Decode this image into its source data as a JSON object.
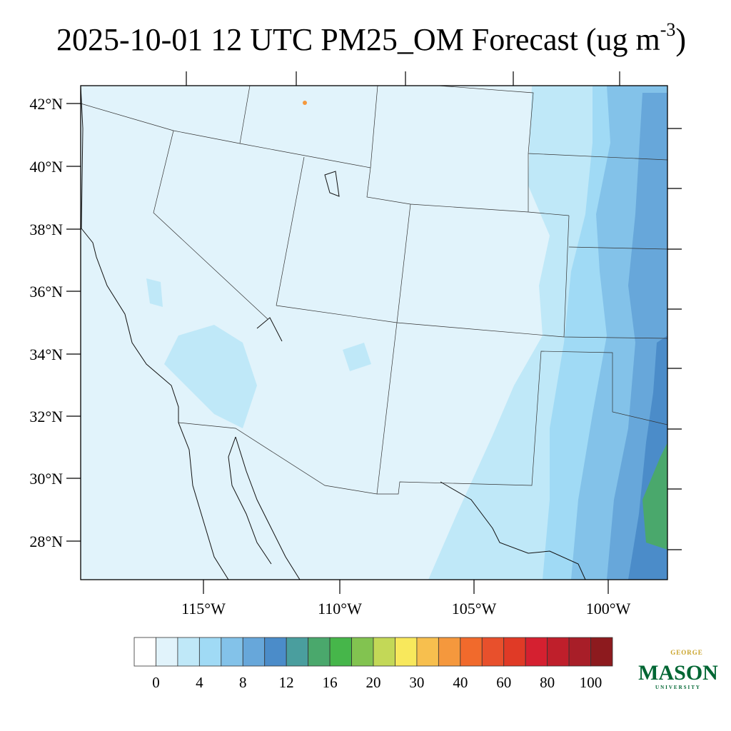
{
  "title": "2025-10-01 12 UTC PM25_OM Forecast (ug m",
  "title_sup": "-3",
  "title_end": ")",
  "lat_labels": [
    "42°N",
    "40°N",
    "38°N",
    "36°N",
    "34°N",
    "32°N",
    "30°N",
    "28°N"
  ],
  "lon_labels": [
    "115°W",
    "110°W",
    "105°W",
    "100°W"
  ],
  "colorbar": {
    "colors": [
      "#ffffff",
      "#e1f3fb",
      "#bfe8f8",
      "#a0daf5",
      "#83c2e9",
      "#67a7da",
      "#4b8cc9",
      "#4a9e9e",
      "#4aa86c",
      "#46b64a",
      "#82c350",
      "#c3d857",
      "#f8e85c",
      "#f7bf4e",
      "#f5983d",
      "#f16a2c",
      "#e8502c",
      "#e03a26",
      "#d52030",
      "#bf1f2b",
      "#a81e28",
      "#8d1a1e"
    ],
    "labels": [
      0,
      4,
      8,
      12,
      16,
      20,
      30,
      40,
      60,
      80,
      100
    ]
  },
  "logo": {
    "top": "GEORGE",
    "main": "MASON",
    "bottom": "UNIVERSITY"
  }
}
